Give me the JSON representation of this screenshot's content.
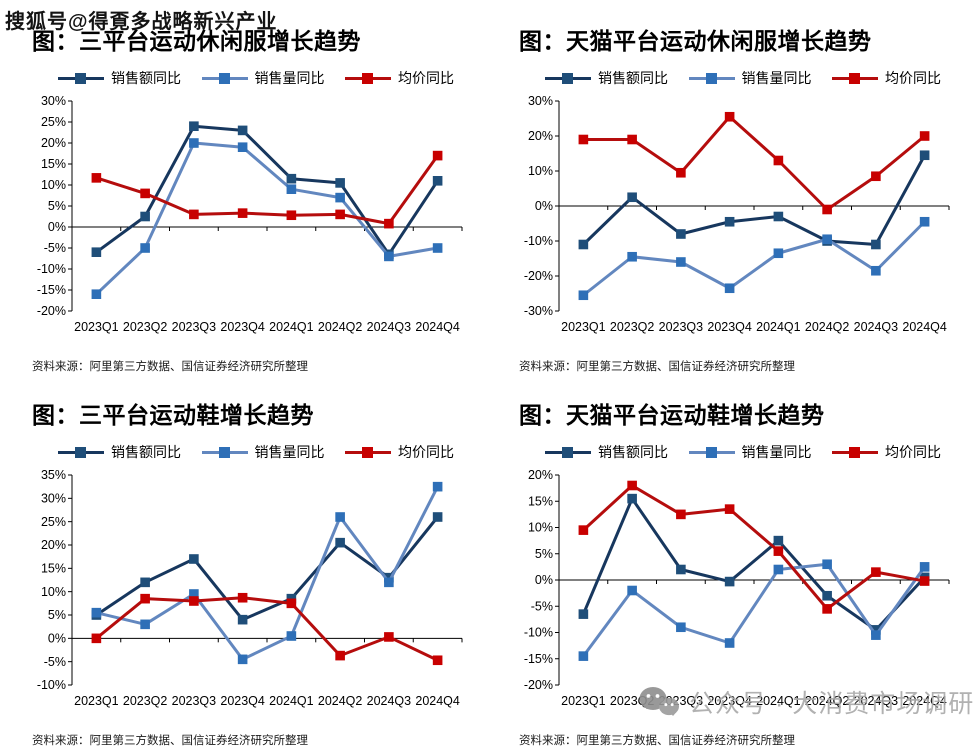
{
  "watermarks": {
    "top_left": "搜狐号@得覔多战略新兴产业",
    "bottom": "公众号 · 大消费市场调研"
  },
  "source_note": "资料来源：阿里第三方数据、国信证券经济研究所整理",
  "accent_colors": {
    "sales_value_line": "#17375E",
    "sales_value_marker": "#1F4E79",
    "sales_volume_line": "#6287BF",
    "sales_volume_marker": "#2E6FB7",
    "avg_price_line": "#B50D0D",
    "avg_price_marker": "#C80000",
    "axis": "#000000",
    "watermark_gray": "#a9a9a9"
  },
  "chart_data": [
    {
      "type": "line",
      "title": "图：三平台运动休闲服增长趋势",
      "categories": [
        "2023Q1",
        "2023Q2",
        "2023Q3",
        "2023Q4",
        "2024Q1",
        "2024Q2",
        "2024Q3",
        "2024Q4"
      ],
      "ylim": [
        -20,
        30
      ],
      "yticks": [
        30,
        25,
        20,
        15,
        10,
        5,
        0,
        -5,
        -10,
        -15,
        -20
      ],
      "grid": false,
      "legend_position": "top",
      "series": [
        {
          "name": "销售额同比",
          "line": "#17375E",
          "marker": "#1F4E79",
          "values": [
            -6,
            2.5,
            24,
            23,
            11.5,
            10.5,
            -6.5,
            11
          ]
        },
        {
          "name": "销售量同比",
          "line": "#6287BF",
          "marker": "#2E6FB7",
          "values": [
            -16,
            -5,
            20,
            19,
            9,
            7,
            -7,
            -5
          ]
        },
        {
          "name": "均价同比",
          "line": "#B50D0D",
          "marker": "#C80000",
          "values": [
            11.7,
            8,
            3,
            3.3,
            2.8,
            3,
            0.8,
            17
          ]
        }
      ]
    },
    {
      "type": "line",
      "title": "图：天猫平台运动休闲服增长趋势",
      "categories": [
        "2023Q1",
        "2023Q2",
        "2023Q3",
        "2023Q4",
        "2024Q1",
        "2024Q2",
        "2024Q3",
        "2024Q4"
      ],
      "ylim": [
        -30,
        30
      ],
      "yticks": [
        30,
        20,
        10,
        0,
        -10,
        -20,
        -30
      ],
      "grid": false,
      "legend_position": "top",
      "series": [
        {
          "name": "销售额同比",
          "line": "#17375E",
          "marker": "#1F4E79",
          "values": [
            -11,
            2.5,
            -8,
            -4.5,
            -3,
            -10,
            -11,
            14.5
          ]
        },
        {
          "name": "销售量同比",
          "line": "#6287BF",
          "marker": "#2E6FB7",
          "values": [
            -25.5,
            -14.5,
            -16,
            -23.5,
            -13.5,
            -9.5,
            -18.5,
            -4.5
          ]
        },
        {
          "name": "均价同比",
          "line": "#B50D0D",
          "marker": "#C80000",
          "values": [
            19,
            19,
            9.5,
            25.5,
            13,
            -1,
            8.5,
            20
          ]
        }
      ]
    },
    {
      "type": "line",
      "title": "图：三平台运动鞋增长趋势",
      "categories": [
        "2023Q1",
        "2023Q2",
        "2023Q3",
        "2023Q4",
        "2024Q1",
        "2024Q2",
        "2024Q3",
        "2024Q4"
      ],
      "ylim": [
        -10,
        35
      ],
      "yticks": [
        35,
        30,
        25,
        20,
        15,
        10,
        5,
        0,
        -5,
        -10
      ],
      "grid": false,
      "legend_position": "top",
      "series": [
        {
          "name": "销售额同比",
          "line": "#17375E",
          "marker": "#1F4E79",
          "values": [
            5,
            12,
            17,
            4,
            8.5,
            20.5,
            13,
            26
          ]
        },
        {
          "name": "销售量同比",
          "line": "#6287BF",
          "marker": "#2E6FB7",
          "values": [
            5.5,
            3,
            9.5,
            -4.5,
            0.5,
            26,
            12,
            32.5
          ]
        },
        {
          "name": "均价同比",
          "line": "#B50D0D",
          "marker": "#C80000",
          "values": [
            0,
            8.5,
            8,
            8.7,
            7.5,
            -3.7,
            0.3,
            -4.7
          ]
        }
      ]
    },
    {
      "type": "line",
      "title": "图：天猫平台运动鞋增长趋势",
      "categories": [
        "2023Q1",
        "2023Q2",
        "2023Q3",
        "2023Q4",
        "2024Q1",
        "2024Q2",
        "2024Q3",
        "2024Q4"
      ],
      "ylim": [
        -20,
        20
      ],
      "yticks": [
        20,
        15,
        10,
        5,
        0,
        -5,
        -10,
        -15,
        -20
      ],
      "grid": false,
      "legend_position": "top",
      "series": [
        {
          "name": "销售额同比",
          "line": "#17375E",
          "marker": "#1F4E79",
          "values": [
            -6.5,
            15.5,
            2,
            -0.3,
            7.5,
            -3,
            -9.5,
            0.5
          ]
        },
        {
          "name": "销售量同比",
          "line": "#6287BF",
          "marker": "#2E6FB7",
          "values": [
            -14.5,
            -2,
            -9,
            -12,
            2,
            3,
            -10.5,
            2.5
          ]
        },
        {
          "name": "均价同比",
          "line": "#B50D0D",
          "marker": "#C80000",
          "values": [
            9.5,
            18,
            12.5,
            13.5,
            5.5,
            -5.5,
            1.5,
            -0.2
          ]
        }
      ]
    }
  ]
}
